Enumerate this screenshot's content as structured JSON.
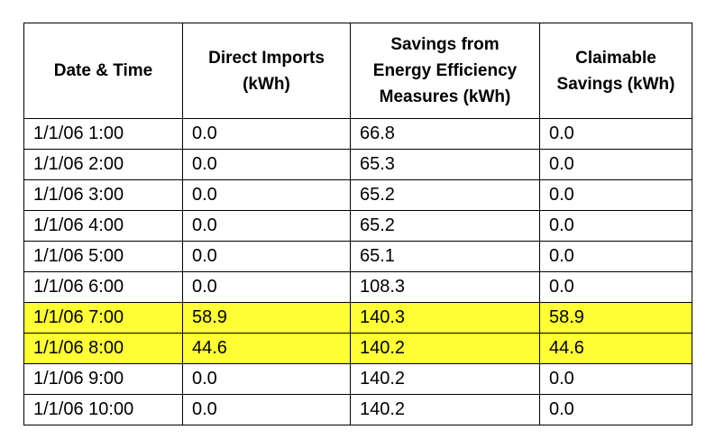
{
  "colors": {
    "highlight": "#ffff33",
    "border": "#000000"
  },
  "table": {
    "headers": [
      {
        "lines": [
          "Date & Time"
        ]
      },
      {
        "lines": [
          "Direct Imports",
          "(kWh)"
        ]
      },
      {
        "lines": [
          "Savings from",
          "Energy Efficiency",
          "Measures (kWh)"
        ]
      },
      {
        "lines": [
          "Claimable",
          "Savings (kWh)"
        ]
      }
    ],
    "rows": [
      {
        "cells": [
          "1/1/06 1:00",
          "0.0",
          "66.8",
          "0.0"
        ],
        "highlighted": false
      },
      {
        "cells": [
          "1/1/06 2:00",
          "0.0",
          "65.3",
          "0.0"
        ],
        "highlighted": false
      },
      {
        "cells": [
          "1/1/06 3:00",
          "0.0",
          "65.2",
          "0.0"
        ],
        "highlighted": false
      },
      {
        "cells": [
          "1/1/06 4:00",
          "0.0",
          "65.2",
          "0.0"
        ],
        "highlighted": false
      },
      {
        "cells": [
          "1/1/06 5:00",
          "0.0",
          "65.1",
          "0.0"
        ],
        "highlighted": false
      },
      {
        "cells": [
          "1/1/06 6:00",
          "0.0",
          "108.3",
          "0.0"
        ],
        "highlighted": false
      },
      {
        "cells": [
          "1/1/06 7:00",
          "58.9",
          "140.3",
          "58.9"
        ],
        "highlighted": true
      },
      {
        "cells": [
          "1/1/06 8:00",
          "44.6",
          "140.2",
          "44.6"
        ],
        "highlighted": true
      },
      {
        "cells": [
          "1/1/06 9:00",
          "0.0",
          "140.2",
          "0.0"
        ],
        "highlighted": false
      },
      {
        "cells": [
          "1/1/06 10:00",
          "0.0",
          "140.2",
          "0.0"
        ],
        "highlighted": false
      }
    ]
  }
}
